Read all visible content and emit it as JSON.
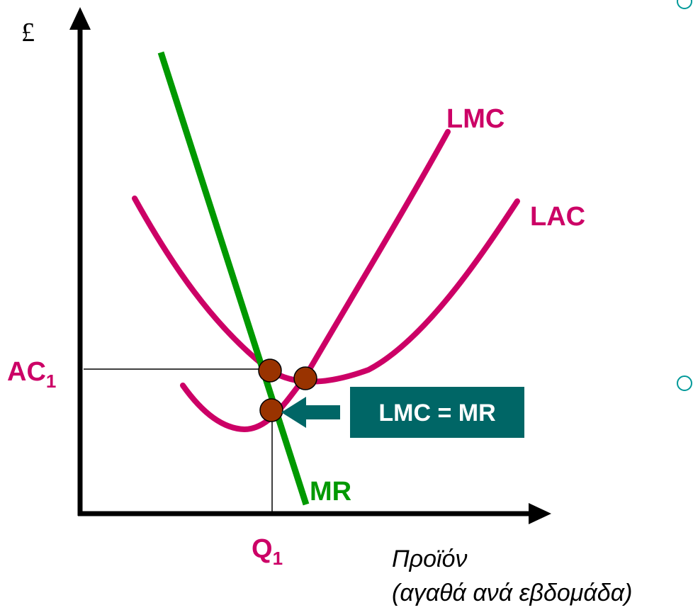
{
  "axes": {
    "y_label": "£",
    "x_label_line1": "Προϊόν",
    "x_label_line2": "(αγαθά ανά εβδομάδα)"
  },
  "ticks": {
    "y_main": "AC",
    "y_sub": "1",
    "x_main": "Q",
    "x_sub": "1"
  },
  "curves": {
    "lmc": "LMC",
    "lac": "LAC",
    "mr": "MR"
  },
  "callout": {
    "text": "LMC = MR"
  },
  "colors": {
    "cost_curves": "#cc0066",
    "mr_line": "#009900",
    "points": "#993300",
    "callout_bg": "#006666",
    "callout_text": "#ffffff",
    "label_color": "#cc0066"
  }
}
